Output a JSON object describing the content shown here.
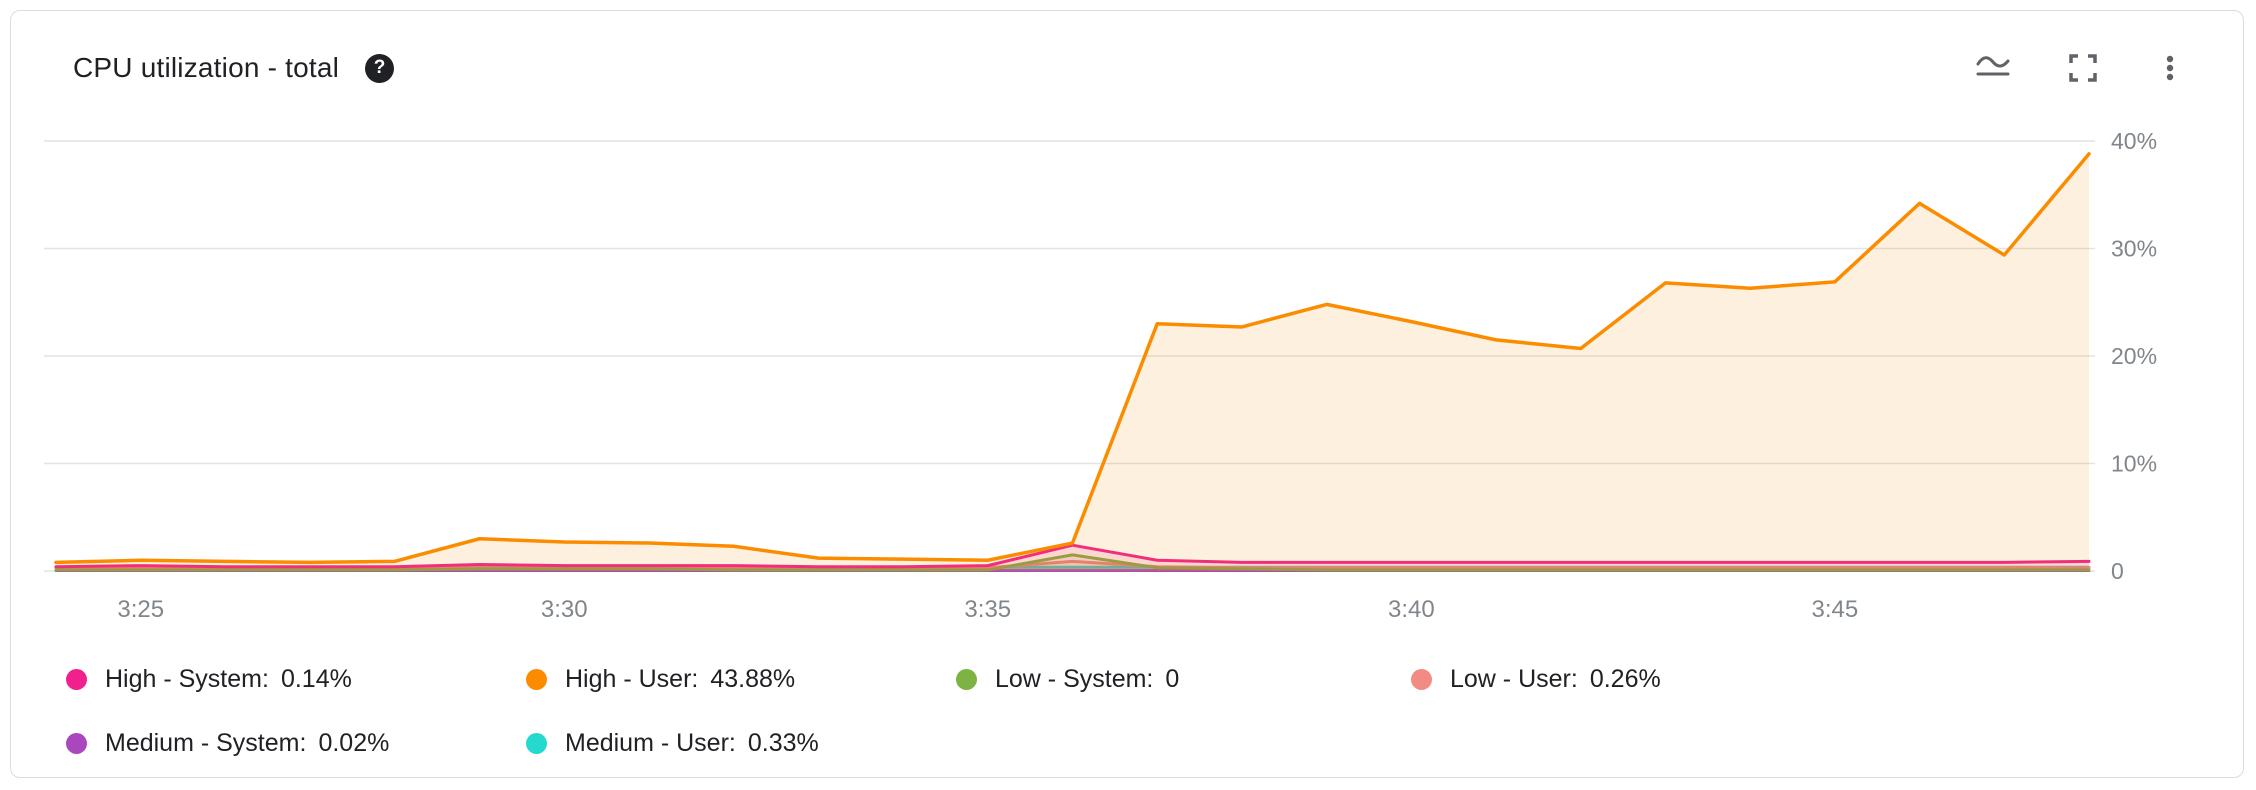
{
  "header": {
    "title": "CPU utilization - total",
    "help_glyph": "?",
    "icons": [
      "line-chart-icon",
      "fullscreen-icon",
      "more-vert-icon"
    ]
  },
  "chart_data": {
    "type": "area",
    "title": "CPU utilization - total",
    "xlabel": "",
    "ylabel": "",
    "ylim": [
      0,
      40
    ],
    "grid": true,
    "legend_position": "bottom",
    "x": [
      "3:24",
      "3:25",
      "3:26",
      "3:27",
      "3:28",
      "3:29",
      "3:30",
      "3:31",
      "3:32",
      "3:33",
      "3:34",
      "3:35",
      "3:36",
      "3:37",
      "3:38",
      "3:39",
      "3:40",
      "3:41",
      "3:42",
      "3:43",
      "3:44",
      "3:45",
      "3:46",
      "3:47",
      "3:48"
    ],
    "x_ticks": [
      {
        "label": "3:25",
        "index": 1
      },
      {
        "label": "3:30",
        "index": 6
      },
      {
        "label": "3:35",
        "index": 11
      },
      {
        "label": "3:40",
        "index": 16
      },
      {
        "label": "3:45",
        "index": 21
      }
    ],
    "y_ticks": [
      {
        "label": "40%",
        "value": 40
      },
      {
        "label": "30%",
        "value": 30
      },
      {
        "label": "20%",
        "value": 20
      },
      {
        "label": "10%",
        "value": 10
      },
      {
        "label": "0",
        "value": 0
      }
    ],
    "series": [
      {
        "id": "high-system",
        "name": "High - System",
        "value": "0.14%",
        "color": "#F0218C",
        "values": [
          0.4,
          0.5,
          0.4,
          0.4,
          0.4,
          0.6,
          0.5,
          0.5,
          0.5,
          0.4,
          0.4,
          0.5,
          2.4,
          1.0,
          0.8,
          0.8,
          0.8,
          0.8,
          0.8,
          0.8,
          0.8,
          0.8,
          0.8,
          0.8,
          0.9
        ]
      },
      {
        "id": "high-user",
        "name": "High - User",
        "value": "43.88%",
        "color": "#FB8C00",
        "values": [
          0.8,
          1.0,
          0.9,
          0.8,
          0.9,
          3.0,
          2.7,
          2.6,
          2.3,
          1.2,
          1.1,
          1.0,
          2.6,
          23.0,
          22.7,
          24.8,
          23.2,
          21.5,
          20.7,
          26.8,
          26.3,
          26.9,
          34.2,
          29.4,
          38.8
        ]
      },
      {
        "id": "low-system",
        "name": "Low - System",
        "value": "0",
        "color": "#7CB342",
        "values": [
          0.1,
          0.1,
          0.1,
          0.1,
          0.1,
          0.2,
          0.2,
          0.2,
          0.1,
          0.1,
          0.1,
          0.1,
          1.5,
          0.3,
          0.2,
          0.1,
          0.1,
          0.1,
          0.1,
          0.1,
          0.1,
          0.1,
          0.1,
          0.1,
          0.1
        ]
      },
      {
        "id": "low-user",
        "name": "Low - User",
        "value": "0.26%",
        "color": "#F28B82",
        "values": [
          0.3,
          0.3,
          0.3,
          0.3,
          0.3,
          0.3,
          0.3,
          0.3,
          0.3,
          0.3,
          0.3,
          0.3,
          0.9,
          0.4,
          0.3,
          0.3,
          0.3,
          0.3,
          0.3,
          0.3,
          0.3,
          0.3,
          0.3,
          0.3,
          0.3
        ]
      },
      {
        "id": "medium-system",
        "name": "Medium - System",
        "value": "0.02%",
        "color": "#AB47BC",
        "values": [
          0.05,
          0.05,
          0.05,
          0.05,
          0.05,
          0.05,
          0.05,
          0.05,
          0.05,
          0.05,
          0.05,
          0.05,
          0.05,
          0.05,
          0.05,
          0.05,
          0.05,
          0.05,
          0.05,
          0.05,
          0.05,
          0.05,
          0.05,
          0.05,
          0.05
        ]
      },
      {
        "id": "medium-user",
        "name": "Medium - User",
        "value": "0.33%",
        "color": "#26D9CE",
        "values": [
          0.35,
          0.35,
          0.35,
          0.35,
          0.35,
          0.35,
          0.35,
          0.35,
          0.35,
          0.35,
          0.35,
          0.35,
          0.35,
          0.35,
          0.35,
          0.35,
          0.35,
          0.35,
          0.35,
          0.35,
          0.35,
          0.35,
          0.35,
          0.35,
          0.35
        ]
      }
    ]
  }
}
